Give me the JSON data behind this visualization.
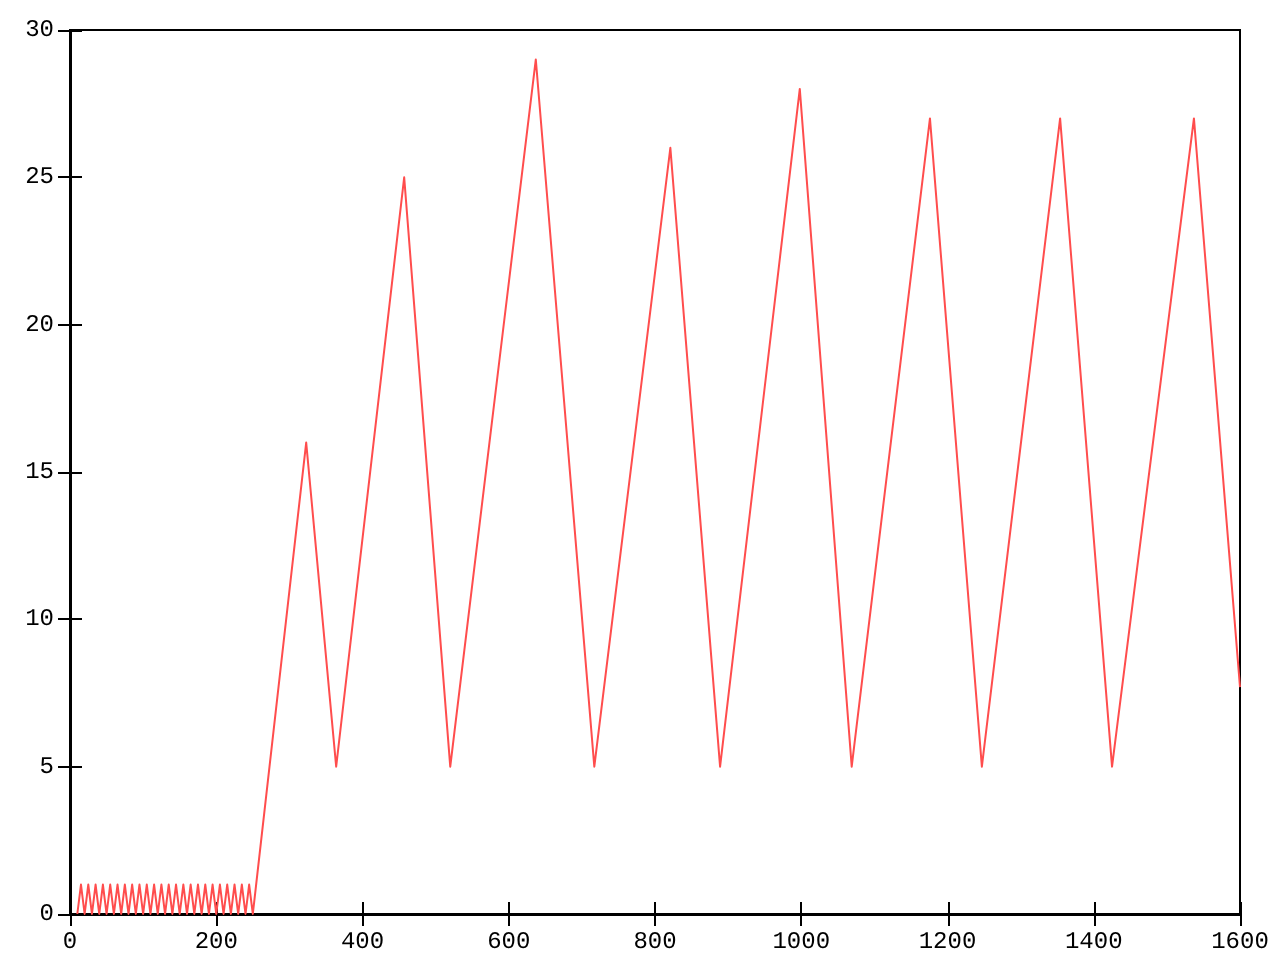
{
  "chart_data": {
    "type": "line",
    "color": "#ff4d4d",
    "x": [
      10,
      15,
      20,
      25,
      30,
      35,
      40,
      45,
      50,
      55,
      60,
      65,
      70,
      75,
      80,
      85,
      90,
      95,
      100,
      105,
      110,
      115,
      120,
      125,
      130,
      135,
      140,
      145,
      150,
      155,
      160,
      165,
      170,
      175,
      180,
      185,
      190,
      195,
      200,
      205,
      210,
      215,
      220,
      225,
      230,
      235,
      240,
      245,
      250,
      323,
      364,
      457,
      520,
      637,
      717,
      821,
      889,
      998,
      1069,
      1176,
      1247,
      1354,
      1425,
      1537,
      1600
    ],
    "values": [
      0,
      1,
      0,
      1,
      0,
      1,
      0,
      1,
      0,
      1,
      0,
      1,
      0,
      1,
      0,
      1,
      0,
      1,
      0,
      1,
      0,
      1,
      0,
      1,
      0,
      1,
      0,
      1,
      0,
      1,
      0,
      1,
      0,
      1,
      0,
      1,
      0,
      1,
      0,
      1,
      0,
      1,
      0,
      1,
      0,
      1,
      0,
      1,
      0,
      16,
      5,
      25,
      5,
      29,
      5,
      26,
      5,
      28,
      5,
      27,
      5,
      27,
      5,
      27,
      7.7
    ],
    "xlim": [
      0,
      1600
    ],
    "xticks": [
      0,
      200,
      400,
      600,
      800,
      1000,
      1200,
      1400,
      1600
    ],
    "ylim": [
      0,
      30
    ],
    "yticks": [
      0,
      5,
      10,
      15,
      20,
      25,
      30
    ],
    "grid": false,
    "marker": "none",
    "line_style": "solid"
  }
}
